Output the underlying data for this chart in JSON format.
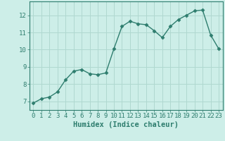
{
  "x": [
    0,
    1,
    2,
    3,
    4,
    5,
    6,
    7,
    8,
    9,
    10,
    11,
    12,
    13,
    14,
    15,
    16,
    17,
    18,
    19,
    20,
    21,
    22,
    23
  ],
  "y": [
    6.9,
    7.15,
    7.25,
    7.55,
    8.25,
    8.75,
    8.85,
    8.6,
    8.55,
    8.65,
    10.05,
    11.35,
    11.65,
    11.5,
    11.45,
    11.1,
    10.7,
    11.35,
    11.75,
    12.0,
    12.25,
    12.3,
    10.85,
    10.05
  ],
  "line_color": "#2e7d6e",
  "marker": "D",
  "marker_size": 2.5,
  "bg_color": "#cdeee8",
  "grid_color": "#b0d8d0",
  "tick_color": "#2e7d6e",
  "label_color": "#2e7d6e",
  "xlabel": "Humidex (Indice chaleur)",
  "ylim": [
    6.5,
    12.8
  ],
  "xlim": [
    -0.5,
    23.5
  ],
  "yticks": [
    7,
    8,
    9,
    10,
    11,
    12
  ],
  "xticks": [
    0,
    1,
    2,
    3,
    4,
    5,
    6,
    7,
    8,
    9,
    10,
    11,
    12,
    13,
    14,
    15,
    16,
    17,
    18,
    19,
    20,
    21,
    22,
    23
  ],
  "xlabel_fontsize": 7.5,
  "tick_fontsize": 6.5,
  "linewidth": 1.0
}
